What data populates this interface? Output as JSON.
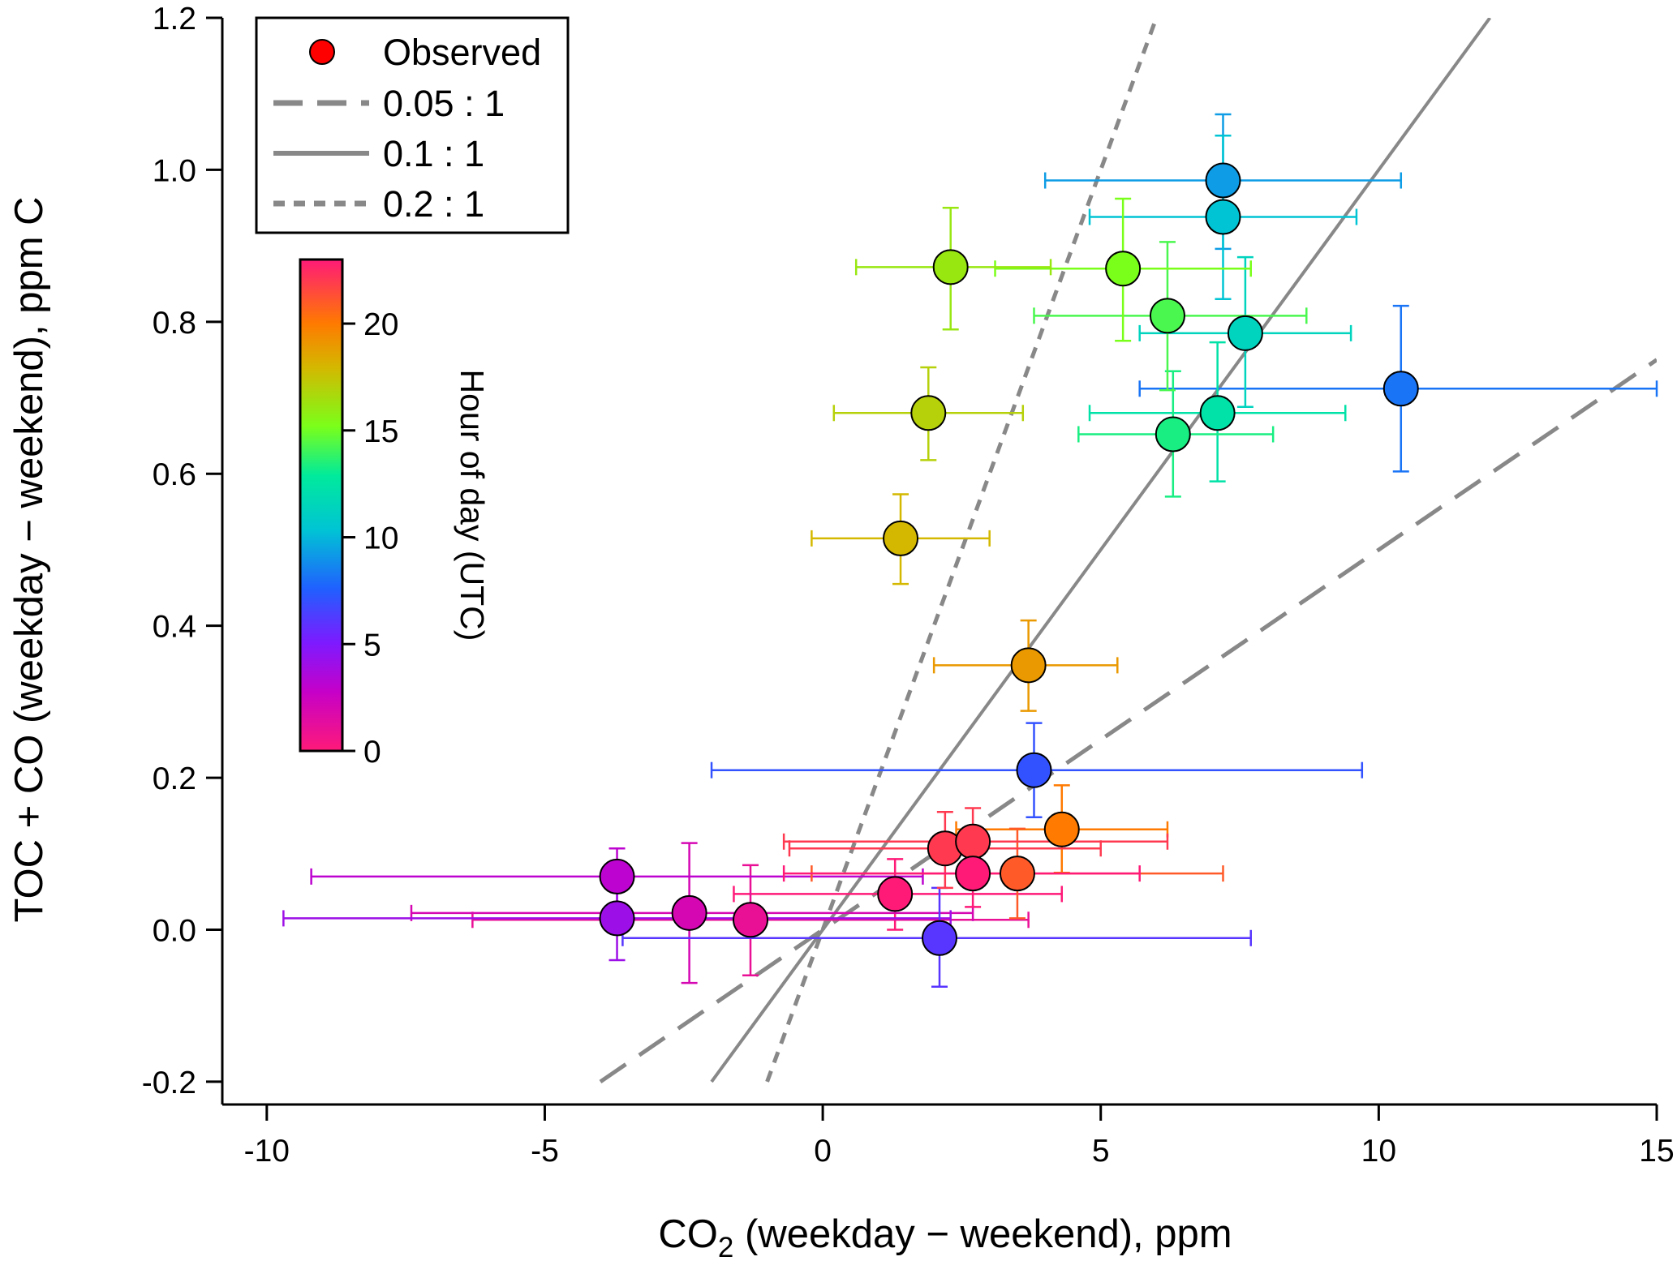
{
  "chart_data": {
    "type": "scatter",
    "xlabel": {
      "main": "CO",
      "sub": "2",
      "rest": " (weekday − weekend), ppm"
    },
    "ylabel": "TOC + CO (weekday − weekend), ppm C",
    "xlim": [
      -10.8,
      15.0
    ],
    "ylim": [
      -0.23,
      1.2
    ],
    "xticks": [
      -10,
      -5,
      0,
      5,
      10,
      15
    ],
    "xtick_labels": [
      "-10",
      "-5",
      "0",
      "5",
      "10",
      "15"
    ],
    "yticks": [
      -0.2,
      0.0,
      0.2,
      0.4,
      0.6,
      0.8,
      1.0,
      1.2
    ],
    "ytick_labels": [
      "-0.2",
      "0.0",
      "0.2",
      "0.4",
      "0.6",
      "0.8",
      "1.0",
      "1.2"
    ],
    "legend": {
      "position": "top-left",
      "entries": [
        {
          "label": "Observed",
          "style": "marker",
          "color": "#ff0000"
        },
        {
          "label": "0.05 : 1",
          "style": "long-dash",
          "color": "#888888"
        },
        {
          "label": "0.1 : 1",
          "style": "solid",
          "color": "#888888"
        },
        {
          "label": "0.2 : 1",
          "style": "short-dash",
          "color": "#888888"
        }
      ]
    },
    "colorbar": {
      "title": "Hour of day (UTC)",
      "range": [
        0,
        23
      ],
      "ticks": [
        0,
        5,
        10,
        15,
        20
      ],
      "tick_labels": [
        "0",
        "5",
        "10",
        "15",
        "20"
      ]
    },
    "reference_lines": [
      {
        "name": "0.05 : 1",
        "slope": 0.05,
        "x": [
          -4.0,
          15.0
        ],
        "style": "long-dash",
        "color": "#888888"
      },
      {
        "name": "0.1 : 1",
        "slope": 0.1,
        "x": [
          -2.0,
          12.0
        ],
        "style": "solid",
        "color": "#888888"
      },
      {
        "name": "0.2 : 1",
        "slope": 0.2,
        "x": [
          -1.0,
          6.0
        ],
        "style": "short-dash",
        "color": "#888888"
      }
    ],
    "points": [
      {
        "hour": 0,
        "x": 1.3,
        "y": 0.047,
        "x_lo": -1.6,
        "x_hi": 4.3,
        "y_lo": 0.0,
        "y_hi": 0.093
      },
      {
        "hour": 1,
        "x": -1.3,
        "y": 0.013,
        "x_lo": -6.3,
        "x_hi": 3.7,
        "y_lo": -0.06,
        "y_hi": 0.085
      },
      {
        "hour": 2,
        "x": -2.4,
        "y": 0.022,
        "x_lo": -7.4,
        "x_hi": 2.7,
        "y_lo": -0.07,
        "y_hi": 0.114
      },
      {
        "hour": 3,
        "x": -3.7,
        "y": 0.07,
        "x_lo": -9.2,
        "x_hi": 1.8,
        "y_lo": 0.035,
        "y_hi": 0.107
      },
      {
        "hour": 4,
        "x": -3.7,
        "y": 0.015,
        "x_lo": -9.7,
        "x_hi": 2.3,
        "y_lo": -0.04,
        "y_hi": 0.07
      },
      {
        "hour": 6,
        "x": 2.1,
        "y": -0.011,
        "x_lo": -3.6,
        "x_hi": 7.7,
        "y_lo": -0.075,
        "y_hi": 0.055
      },
      {
        "hour": 7,
        "x": 3.8,
        "y": 0.21,
        "x_lo": -2.0,
        "x_hi": 9.7,
        "y_lo": 0.148,
        "y_hi": 0.272
      },
      {
        "hour": 8,
        "x": 10.4,
        "y": 0.712,
        "x_lo": 5.7,
        "x_hi": 15.0,
        "y_lo": 0.603,
        "y_hi": 0.821
      },
      {
        "hour": 9,
        "x": 7.2,
        "y": 0.986,
        "x_lo": 4.0,
        "x_hi": 10.4,
        "y_lo": 0.896,
        "y_hi": 1.073
      },
      {
        "hour": 10,
        "x": 7.2,
        "y": 0.938,
        "x_lo": 4.8,
        "x_hi": 9.6,
        "y_lo": 0.83,
        "y_hi": 1.045
      },
      {
        "hour": 11,
        "x": 7.6,
        "y": 0.785,
        "x_lo": 5.7,
        "x_hi": 9.5,
        "y_lo": 0.688,
        "y_hi": 0.885
      },
      {
        "hour": 12,
        "x": 7.1,
        "y": 0.68,
        "x_lo": 4.8,
        "x_hi": 9.4,
        "y_lo": 0.59,
        "y_hi": 0.773
      },
      {
        "hour": 13,
        "x": 6.3,
        "y": 0.652,
        "x_lo": 4.6,
        "x_hi": 8.1,
        "y_lo": 0.57,
        "y_hi": 0.735
      },
      {
        "hour": 14,
        "x": 6.2,
        "y": 0.808,
        "x_lo": 3.8,
        "x_hi": 8.7,
        "y_lo": 0.71,
        "y_hi": 0.905
      },
      {
        "hour": 15,
        "x": 5.4,
        "y": 0.87,
        "x_lo": 3.1,
        "x_hi": 7.7,
        "y_lo": 0.775,
        "y_hi": 0.962
      },
      {
        "hour": 16,
        "x": 2.3,
        "y": 0.872,
        "x_lo": 0.6,
        "x_hi": 4.1,
        "y_lo": 0.79,
        "y_hi": 0.95
      },
      {
        "hour": 17,
        "x": 1.9,
        "y": 0.68,
        "x_lo": 0.2,
        "x_hi": 3.6,
        "y_lo": 0.618,
        "y_hi": 0.74
      },
      {
        "hour": 18,
        "x": 1.4,
        "y": 0.515,
        "x_lo": -0.2,
        "x_hi": 3.0,
        "y_lo": 0.455,
        "y_hi": 0.573
      },
      {
        "hour": 19,
        "x": 3.7,
        "y": 0.348,
        "x_lo": 2.0,
        "x_hi": 5.3,
        "y_lo": 0.288,
        "y_hi": 0.407
      },
      {
        "hour": 20,
        "x": 4.3,
        "y": 0.132,
        "x_lo": 2.4,
        "x_hi": 6.2,
        "y_lo": 0.075,
        "y_hi": 0.19
      },
      {
        "hour": 21,
        "x": 3.5,
        "y": 0.074,
        "x_lo": -0.2,
        "x_hi": 7.2,
        "y_lo": 0.015,
        "y_hi": 0.133
      },
      {
        "hour": 22,
        "x": 2.2,
        "y": 0.107,
        "x_lo": -0.6,
        "x_hi": 5.0,
        "y_lo": 0.055,
        "y_hi": 0.155
      },
      {
        "hour": 22,
        "x": 2.7,
        "y": 0.116,
        "x_lo": -0.7,
        "x_hi": 6.2,
        "y_lo": 0.07,
        "y_hi": 0.16
      },
      {
        "hour": 23,
        "x": 2.7,
        "y": 0.074,
        "x_lo": -0.7,
        "x_hi": 5.7,
        "y_lo": 0.03,
        "y_hi": 0.118
      }
    ]
  }
}
